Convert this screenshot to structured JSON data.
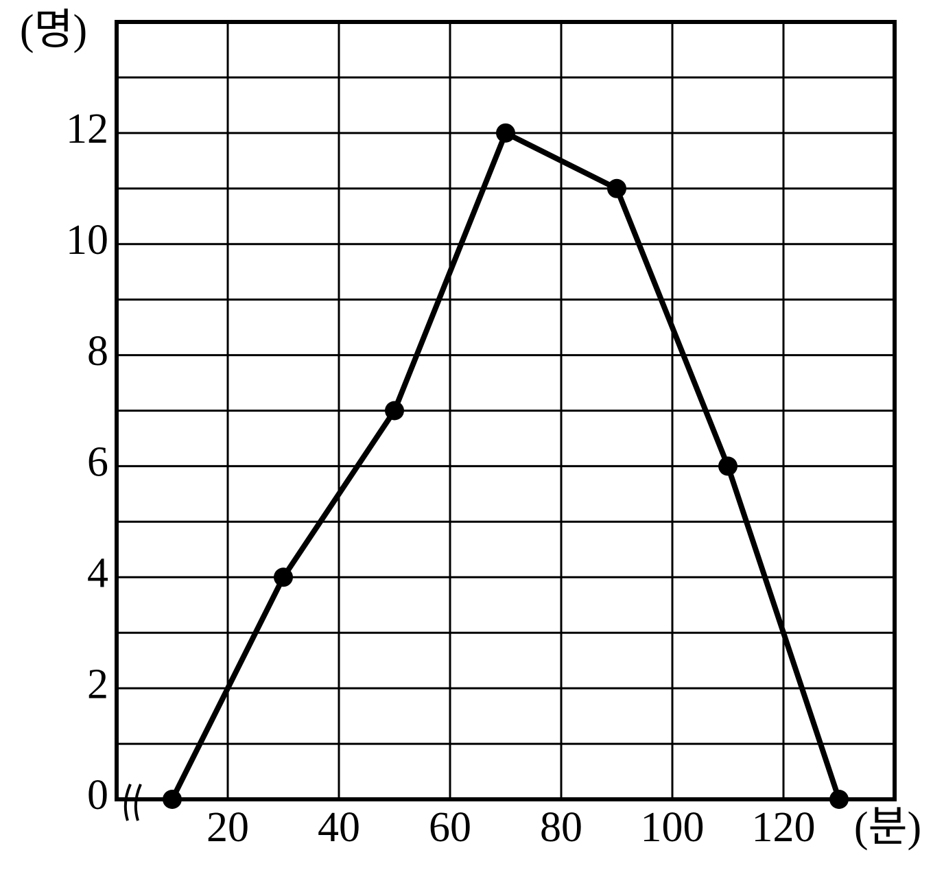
{
  "chart_data": {
    "type": "line",
    "y_label": "(명)",
    "x_label": "(분)",
    "x": [
      10,
      30,
      50,
      70,
      90,
      110,
      130
    ],
    "values": [
      0,
      4,
      7,
      12,
      11,
      6,
      0
    ],
    "color": "#000000",
    "xlim": [
      0,
      140
    ],
    "xticks": [
      20,
      40,
      60,
      80,
      100,
      120
    ],
    "ylim": [
      0,
      14
    ],
    "yticks": [
      0,
      2,
      4,
      6,
      8,
      10,
      12
    ],
    "grid": true
  }
}
